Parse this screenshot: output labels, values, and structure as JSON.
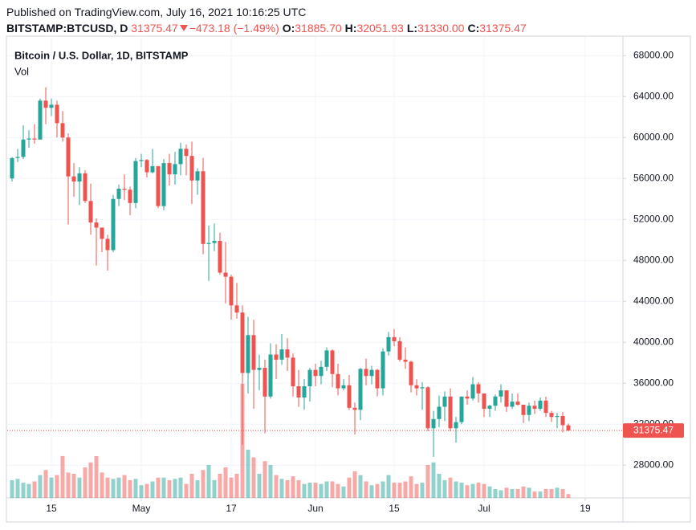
{
  "header": {
    "published": "Published on TradingView.com, July 16, 2021 10:16:25 UTC",
    "symbol": "BITSTAMP:BTCUSD, D",
    "last": "31375.47",
    "change": "−473.18 (−1.49%)",
    "ohlc": [
      {
        "key": "O:",
        "value": "31885.70"
      },
      {
        "key": "H:",
        "value": "32051.93"
      },
      {
        "key": "L:",
        "value": "31330.00"
      },
      {
        "key": "C:",
        "value": "31375.47"
      }
    ]
  },
  "chart_data": {
    "type": "candlestick",
    "title": "Bitcoin / U.S. Dollar, 1D, BITSTAMP",
    "volume_label": "Vol",
    "up_color": "#26a69a",
    "down_color": "#ef5350",
    "grid": true,
    "x": [
      "2021-04-08",
      "2021-04-09",
      "2021-04-10",
      "2021-04-11",
      "2021-04-12",
      "2021-04-13",
      "2021-04-14",
      "2021-04-15",
      "2021-04-16",
      "2021-04-17",
      "2021-04-18",
      "2021-04-19",
      "2021-04-20",
      "2021-04-21",
      "2021-04-22",
      "2021-04-23",
      "2021-04-24",
      "2021-04-25",
      "2021-04-26",
      "2021-04-27",
      "2021-04-28",
      "2021-04-29",
      "2021-04-30",
      "2021-05-01",
      "2021-05-02",
      "2021-05-03",
      "2021-05-04",
      "2021-05-05",
      "2021-05-06",
      "2021-05-07",
      "2021-05-08",
      "2021-05-09",
      "2021-05-10",
      "2021-05-11",
      "2021-05-12",
      "2021-05-13",
      "2021-05-14",
      "2021-05-15",
      "2021-05-16",
      "2021-05-17",
      "2021-05-18",
      "2021-05-19",
      "2021-05-20",
      "2021-05-21",
      "2021-05-22",
      "2021-05-23",
      "2021-05-24",
      "2021-05-25",
      "2021-05-26",
      "2021-05-27",
      "2021-05-28",
      "2021-05-29",
      "2021-05-30",
      "2021-05-31",
      "2021-06-01",
      "2021-06-02",
      "2021-06-03",
      "2021-06-04",
      "2021-06-05",
      "2021-06-06",
      "2021-06-07",
      "2021-06-08",
      "2021-06-09",
      "2021-06-10",
      "2021-06-11",
      "2021-06-12",
      "2021-06-13",
      "2021-06-14",
      "2021-06-15",
      "2021-06-16",
      "2021-06-17",
      "2021-06-18",
      "2021-06-19",
      "2021-06-20",
      "2021-06-21",
      "2021-06-22",
      "2021-06-23",
      "2021-06-24",
      "2021-06-25",
      "2021-06-26",
      "2021-06-27",
      "2021-06-28",
      "2021-06-29",
      "2021-06-30",
      "2021-07-01",
      "2021-07-02",
      "2021-07-03",
      "2021-07-04",
      "2021-07-05",
      "2021-07-06",
      "2021-07-07",
      "2021-07-08",
      "2021-07-09",
      "2021-07-10",
      "2021-07-11",
      "2021-07-12",
      "2021-07-13",
      "2021-07-14",
      "2021-07-15",
      "2021-07-16"
    ],
    "open": [
      56000,
      58000,
      58100,
      59800,
      59900,
      59800,
      63600,
      62900,
      63200,
      61400,
      60000,
      56200,
      55700,
      56500,
      53800,
      51700,
      51200,
      50100,
      49000,
      54000,
      55000,
      54900,
      53600,
      57700,
      57800,
      56600,
      57200,
      53300,
      57500,
      56400,
      57400,
      58900,
      58200,
      55800,
      56700,
      49600,
      49700,
      49900,
      46800,
      46400,
      43600,
      42900,
      37000,
      40700,
      37300,
      37500,
      34700,
      38800,
      38300,
      39300,
      38500,
      35700,
      34600,
      35700,
      37300,
      36700,
      37600,
      39200,
      36900,
      35500,
      35800,
      33600,
      33400,
      37400,
      36700,
      37300,
      35500,
      39100,
      40500,
      40100,
      38300,
      38100,
      35800,
      35500,
      35600,
      31600,
      32500,
      33700,
      34700,
      31600,
      32200,
      34700,
      34500,
      35900,
      35000,
      33500,
      33800,
      34700,
      35300,
      33700,
      34200,
      33900,
      32900,
      33800,
      33500,
      34300,
      33100,
      32700,
      32800,
      31885.7
    ],
    "high": [
      58100,
      58900,
      61200,
      60700,
      61300,
      63800,
      64900,
      63800,
      63600,
      62600,
      60400,
      57500,
      57100,
      56800,
      55500,
      52100,
      51200,
      50500,
      54400,
      55400,
      56400,
      55200,
      58000,
      58400,
      57900,
      58900,
      57200,
      57900,
      58400,
      58600,
      59500,
      59300,
      59600,
      57000,
      58000,
      51400,
      51600,
      50700,
      49800,
      46600,
      45800,
      43600,
      42500,
      42200,
      38800,
      38300,
      39900,
      39800,
      40800,
      40400,
      38900,
      37300,
      36400,
      37500,
      37900,
      38200,
      39500,
      39300,
      37900,
      36400,
      36800,
      34100,
      37500,
      38400,
      37700,
      37400,
      39400,
      41000,
      41300,
      40500,
      39500,
      38200,
      36400,
      36100,
      35700,
      33300,
      34800,
      35200,
      35500,
      32700,
      34700,
      35300,
      36600,
      36100,
      35000,
      33900,
      34900,
      35900,
      35300,
      35000,
      35000,
      33900,
      34100,
      34300,
      34600,
      34700,
      33300,
      33100,
      33200,
      32051.93
    ],
    "low": [
      55700,
      57600,
      57900,
      59000,
      59400,
      59800,
      61300,
      62100,
      60000,
      59600,
      51500,
      54200,
      53400,
      53600,
      50500,
      47500,
      48800,
      47000,
      48800,
      53300,
      53900,
      52400,
      53100,
      57100,
      56100,
      56500,
      53100,
      52900,
      55300,
      55400,
      56300,
      56300,
      53500,
      54400,
      48600,
      46000,
      48900,
      46600,
      43800,
      42200,
      42300,
      30000,
      35000,
      33500,
      35300,
      31100,
      34500,
      36400,
      37800,
      37200,
      34700,
      33700,
      33400,
      34200,
      35700,
      35900,
      37200,
      35600,
      34800,
      35300,
      33400,
      31000,
      32400,
      35800,
      35900,
      34700,
      34800,
      38700,
      39600,
      38100,
      37400,
      35100,
      34800,
      33400,
      31300,
      28800,
      31700,
      32300,
      31300,
      30200,
      32000,
      33900,
      34300,
      34100,
      32700,
      32700,
      33300,
      34100,
      33200,
      33500,
      33800,
      32100,
      32300,
      33000,
      33300,
      32700,
      32200,
      31600,
      31200,
      31330
    ],
    "close": [
      57990,
      58100,
      59800,
      59900,
      59800,
      63600,
      62900,
      63200,
      61400,
      60000,
      56200,
      55700,
      56500,
      53800,
      51700,
      51200,
      50100,
      49000,
      54000,
      55000,
      54900,
      53600,
      57700,
      57800,
      56600,
      57200,
      53300,
      57500,
      56400,
      57400,
      58900,
      58200,
      55800,
      56700,
      49600,
      49700,
      49900,
      46800,
      46400,
      43600,
      42900,
      37000,
      40700,
      37300,
      37500,
      34700,
      38800,
      38300,
      39300,
      38500,
      35700,
      34600,
      35700,
      37300,
      36700,
      37600,
      39200,
      36900,
      35500,
      35800,
      33600,
      33400,
      37400,
      36700,
      37300,
      35500,
      39100,
      40500,
      40100,
      38300,
      38100,
      35800,
      35500,
      35600,
      31600,
      32500,
      33700,
      34700,
      31600,
      32200,
      34700,
      34500,
      35900,
      35000,
      33500,
      33800,
      34700,
      35300,
      33700,
      34200,
      33900,
      32900,
      33800,
      33500,
      34300,
      33100,
      32700,
      32800,
      31900,
      31375.47
    ],
    "volume": [
      7000,
      7500,
      6000,
      5500,
      6500,
      9000,
      11000,
      8000,
      9000,
      16500,
      10000,
      9500,
      8000,
      12000,
      14000,
      16500,
      10000,
      8000,
      7500,
      8000,
      9000,
      7000,
      7500,
      5000,
      5500,
      6500,
      8000,
      8000,
      7000,
      7500,
      8000,
      5500,
      9500,
      7000,
      11000,
      13000,
      7000,
      9500,
      12000,
      8000,
      9500,
      45000,
      19000,
      16000,
      9500,
      14500,
      13000,
      9000,
      7500,
      7000,
      8500,
      7000,
      5500,
      6000,
      6000,
      5500,
      6500,
      6500,
      5500,
      4500,
      8000,
      10500,
      9000,
      6500,
      5000,
      5500,
      6500,
      9000,
      6000,
      6000,
      6500,
      8500,
      5500,
      6000,
      13000,
      14000,
      9500,
      7000,
      8000,
      6500,
      6000,
      5000,
      5500,
      6000,
      5500,
      4500,
      3500,
      3000,
      4000,
      3500,
      3500,
      4500,
      4000,
      2500,
      2500,
      3500,
      3500,
      4000,
      3500,
      1500
    ],
    "last_price": 31375.47,
    "xlim": [
      "2021-04-07",
      "2021-07-25"
    ],
    "xticks": [
      {
        "value": "2021-04-15",
        "label": "15"
      },
      {
        "value": "2021-05-01",
        "label": "May"
      },
      {
        "value": "2021-05-17",
        "label": "17"
      },
      {
        "value": "2021-06-01",
        "label": "Jun"
      },
      {
        "value": "2021-06-15",
        "label": "15"
      },
      {
        "value": "2021-07-01",
        "label": "Jul"
      },
      {
        "value": "2021-07-19",
        "label": "19"
      }
    ],
    "ylim": [
      24800,
      69900
    ],
    "yticks": [
      {
        "value": 28000,
        "label": "28000.00"
      },
      {
        "value": 32000,
        "label": "32000.00"
      },
      {
        "value": 36000,
        "label": "36000.00"
      },
      {
        "value": 40000,
        "label": "40000.00"
      },
      {
        "value": 44000,
        "label": "44000.00"
      },
      {
        "value": 48000,
        "label": "48000.00"
      },
      {
        "value": 52000,
        "label": "52000.00"
      },
      {
        "value": 56000,
        "label": "56000.00"
      },
      {
        "value": 60000,
        "label": "60000.00"
      },
      {
        "value": 64000,
        "label": "64000.00"
      },
      {
        "value": 68000,
        "label": "68000.00"
      }
    ]
  }
}
